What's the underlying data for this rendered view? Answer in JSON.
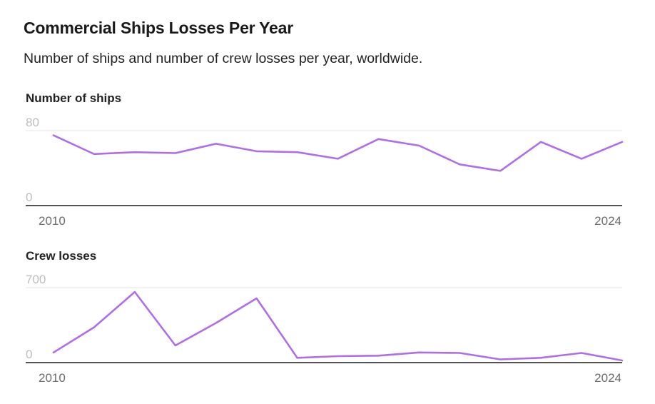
{
  "title": "Commercial Ships Losses Per Year",
  "subtitle": "Number of ships and number of crew losses per year, worldwide.",
  "line_color": "#b06ee6",
  "chart_data": [
    {
      "type": "line",
      "title": "Number of ships",
      "x": [
        2010,
        2011,
        2012,
        2013,
        2014,
        2015,
        2016,
        2017,
        2018,
        2019,
        2020,
        2021,
        2022,
        2023,
        2024
      ],
      "values": [
        75,
        55,
        57,
        56,
        66,
        58,
        57,
        50,
        71,
        64,
        44,
        37,
        68,
        50,
        68
      ],
      "ylim": [
        0,
        80
      ],
      "ytick_labels": [
        "80",
        "0"
      ],
      "xtick_labels": [
        "2010",
        "2024"
      ],
      "xlabel": "",
      "ylabel": ""
    },
    {
      "type": "line",
      "title": "Crew losses",
      "x": [
        2010,
        2011,
        2012,
        2013,
        2014,
        2015,
        2016,
        2017,
        2018,
        2019,
        2020,
        2021,
        2022,
        2023,
        2024
      ],
      "values": [
        95,
        330,
        660,
        160,
        370,
        600,
        45,
        60,
        65,
        95,
        90,
        30,
        45,
        90,
        20
      ],
      "ylim": [
        0,
        700
      ],
      "ytick_labels": [
        "700",
        "0"
      ],
      "xtick_labels": [
        "2010",
        "2024"
      ],
      "xlabel": "",
      "ylabel": ""
    }
  ]
}
